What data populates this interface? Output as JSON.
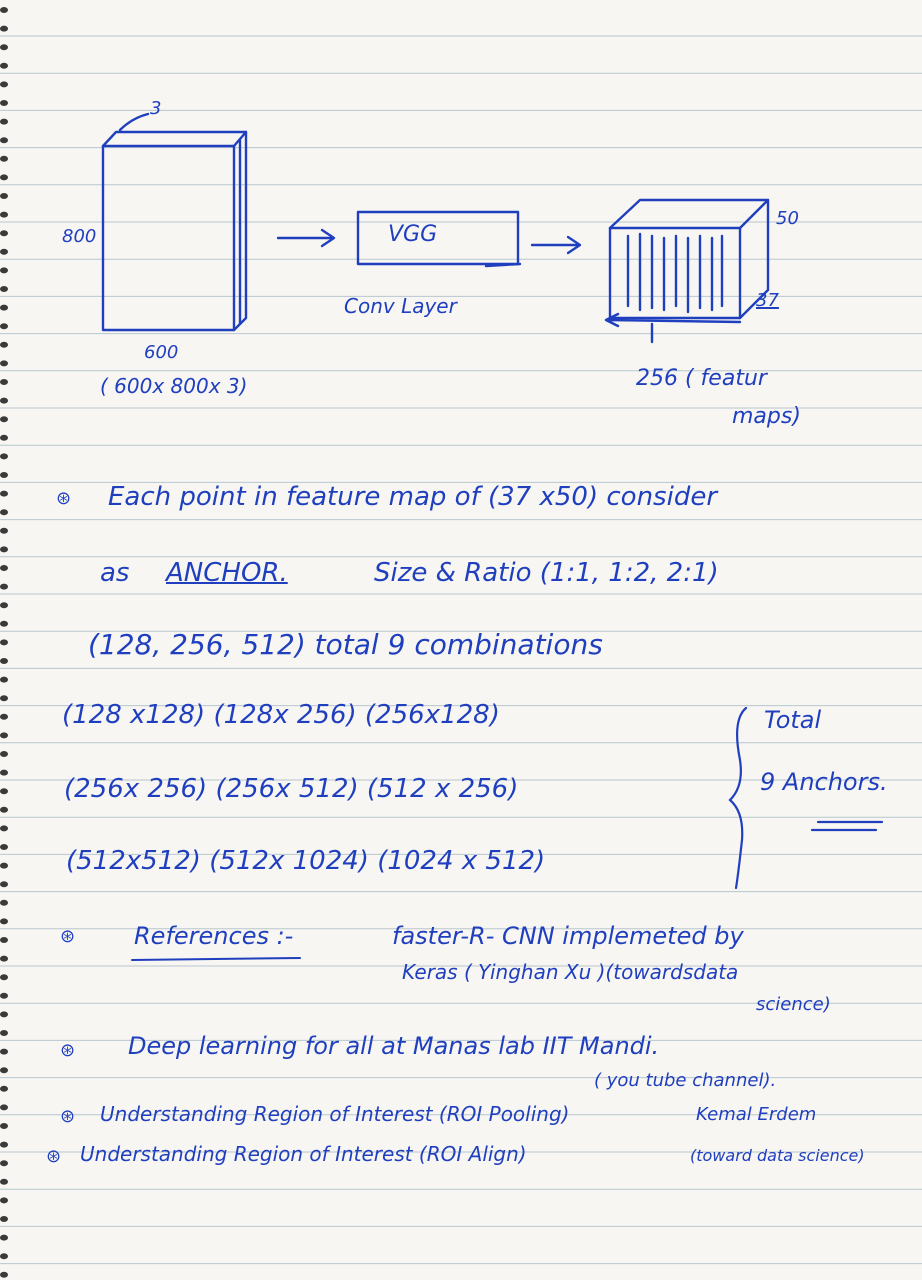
{
  "diagram": {
    "input_depth": "3",
    "input_height": "800",
    "input_width": "600",
    "input_size": "( 600x 800x 3)",
    "vgg_label": "VGG",
    "conv_label": "Conv Layer",
    "fmap_depth": "50",
    "fmap_height": "37",
    "fmap_channels_line1": "256 ( featur",
    "fmap_channels_line2": "maps)"
  },
  "notes": {
    "line1": "Each point in feature map of (37 x50) consider",
    "line2_a": "as",
    "line2_anchor": "ANCHOR.",
    "line2_b": "Size & Ratio (1:1, 1:2, 2:1)",
    "line3": "(128, 256, 512) total 9 combinations",
    "row1": "(128 x128) (128x 256) (256x128)",
    "row2": "(256x 256) (256x 512) (512 x 256)",
    "row3": "(512x512) (512x 1024) (1024 x 512)",
    "total_line1": "Total",
    "total_line2": "9 Anchors."
  },
  "references": {
    "label": "References :-",
    "ref1_line1": "faster-R- CNN implemeted by",
    "ref1_line2": "Keras ( Yinghan Xu )(towardsdata",
    "ref1_line3": "science)",
    "ref2_line1": "Deep learning for all at Manas lab IIT Mandi.",
    "ref2_line2": "( you tube channel).",
    "ref3": "Understanding Region of Interest (ROI Pooling)",
    "ref3_author": "Kemal Erdem",
    "ref4": "Understanding Region of Interest (ROI Align)",
    "ref4_source": "(toward data science)"
  }
}
